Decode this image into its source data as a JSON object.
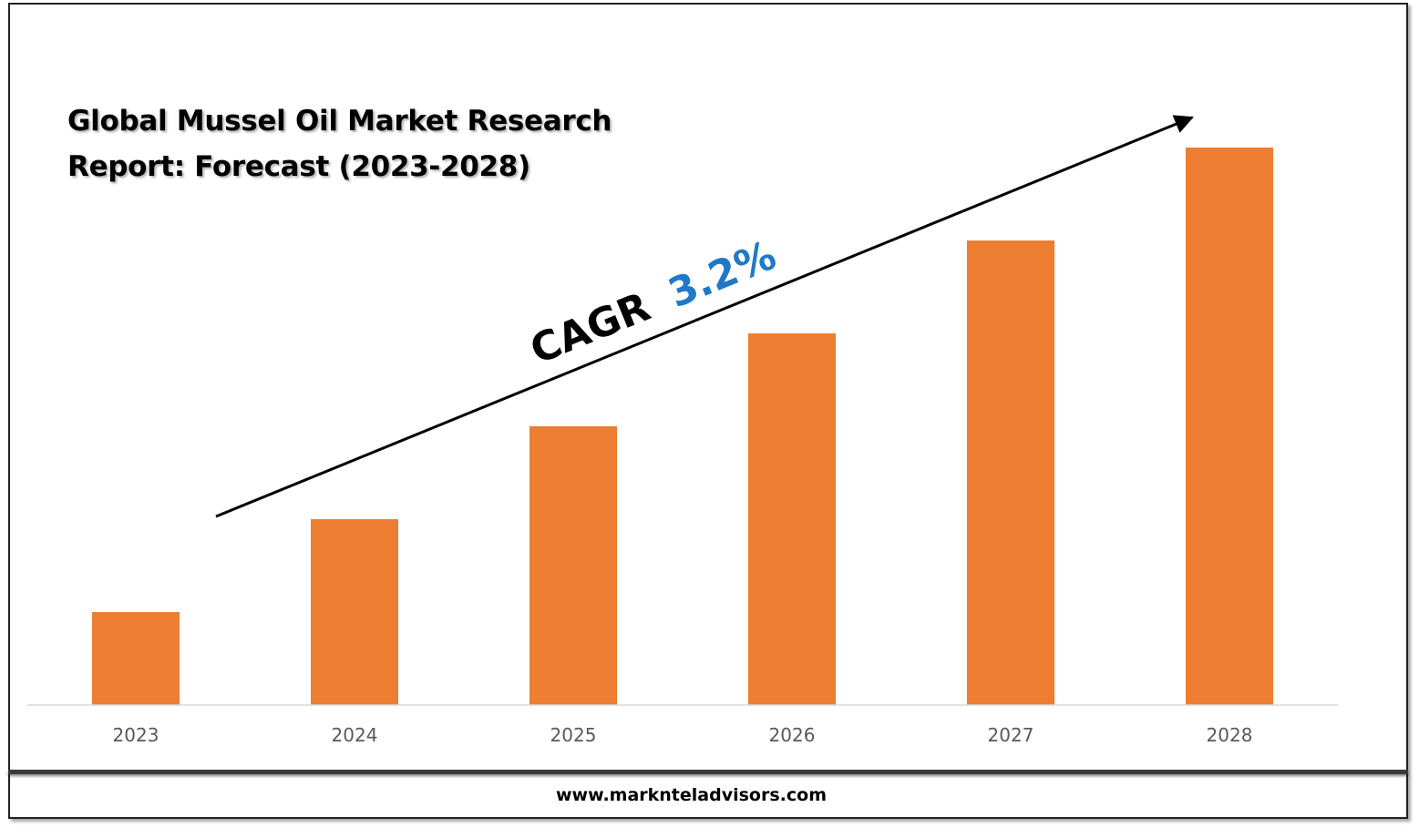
{
  "title": {
    "line1": "Global Mussel Oil Market Research",
    "line2": "Report: Forecast (2023-2028)"
  },
  "annotation": {
    "cagr_label": "CAGR",
    "cagr_value": "3.2%"
  },
  "footer": {
    "url": "www.marknteladvisors.com"
  },
  "colors": {
    "bar": "#ED7D31",
    "cagr_value": "#1F78C8",
    "axis": "#D9D9D9",
    "tick_text": "#595959"
  },
  "chart_data": {
    "type": "bar",
    "title": "Global Mussel Oil Market Research Report: Forecast (2023-2028)",
    "categories": [
      "2023",
      "2024",
      "2025",
      "2026",
      "2027",
      "2028"
    ],
    "values": [
      1,
      2,
      3,
      4,
      5,
      6
    ],
    "ylim": [
      0,
      6
    ],
    "xlabel": "",
    "ylabel": "",
    "grid": false,
    "legend": "none",
    "annotations": [
      "CAGR 3.2%"
    ]
  }
}
